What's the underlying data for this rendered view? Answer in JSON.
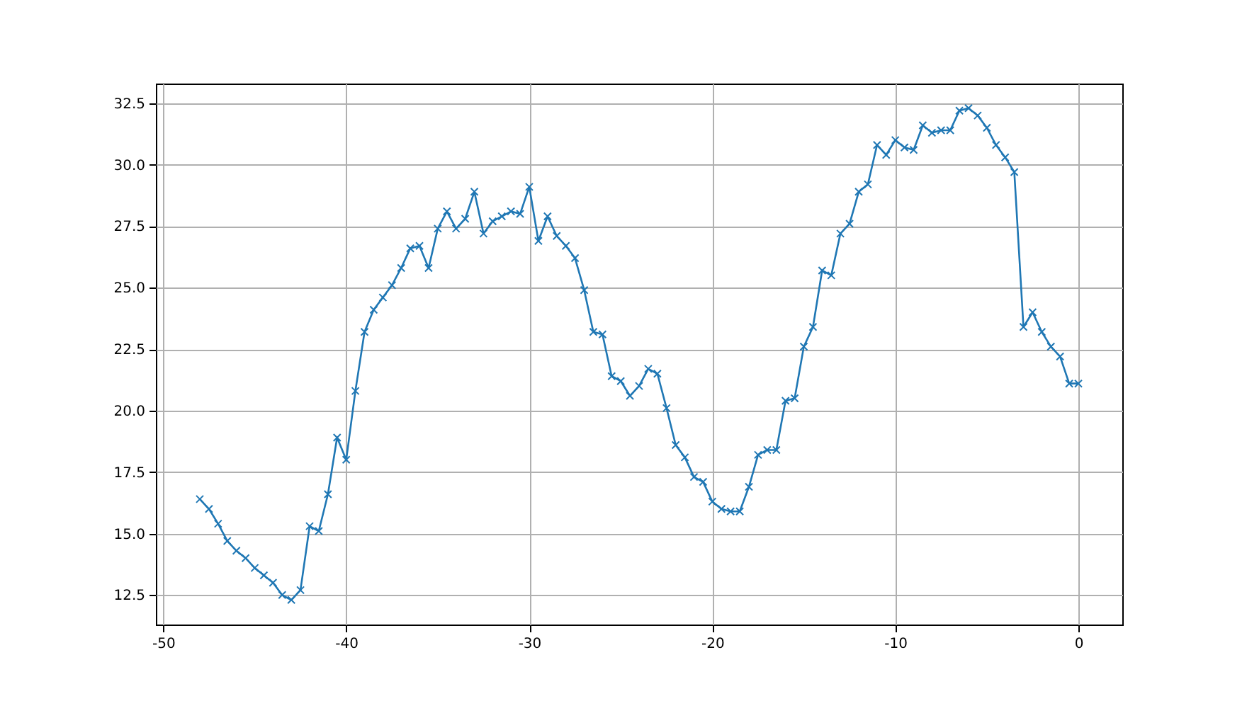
{
  "chart_data": {
    "type": "line",
    "x": [
      -48,
      -47.5,
      -47,
      -46.5,
      -46,
      -45.5,
      -45,
      -44.5,
      -44,
      -43.5,
      -43,
      -42.5,
      -42,
      -41.5,
      -41,
      -40.5,
      -40,
      -39.5,
      -39,
      -38.5,
      -38,
      -37.5,
      -37,
      -36.5,
      -36,
      -35.5,
      -35,
      -34.5,
      -34,
      -33.5,
      -33,
      -32.5,
      -32,
      -31.5,
      -31,
      -30.5,
      -30,
      -29.5,
      -29,
      -28.5,
      -28,
      -27.5,
      -27,
      -26.5,
      -26,
      -25.5,
      -25,
      -24.5,
      -24,
      -23.5,
      -23,
      -22.5,
      -22,
      -21.5,
      -21,
      -20.5,
      -20,
      -19.5,
      -19,
      -18.5,
      -18,
      -17.5,
      -17,
      -16.5,
      -16,
      -15.5,
      -15,
      -14.5,
      -14,
      -13.5,
      -13,
      -12.5,
      -12,
      -11.5,
      -11,
      -10.5,
      -10,
      -9.5,
      -9,
      -8.5,
      -8,
      -7.5,
      -7,
      -6.5,
      -6,
      -5.5,
      -5,
      -4.5,
      -4,
      -3.5,
      -3,
      -2.5,
      -2,
      -1.5,
      -1,
      -0.5,
      0
    ],
    "series": [
      {
        "color": "#1f77b4",
        "values": [
          16.4,
          16.0,
          15.4,
          14.7,
          14.3,
          14.0,
          13.6,
          13.3,
          13.0,
          12.5,
          12.3,
          12.7,
          15.3,
          15.1,
          16.6,
          18.9,
          18.0,
          20.8,
          23.2,
          24.1,
          24.6,
          25.1,
          25.8,
          26.6,
          26.7,
          25.8,
          27.4,
          28.1,
          27.4,
          27.8,
          28.9,
          27.2,
          27.7,
          27.9,
          28.1,
          28.0,
          29.1,
          26.9,
          27.9,
          27.1,
          26.7,
          26.2,
          24.9,
          23.2,
          23.1,
          21.4,
          21.2,
          20.6,
          21.0,
          21.7,
          21.5,
          20.1,
          18.6,
          18.1,
          17.3,
          17.1,
          16.3,
          16.0,
          15.9,
          15.9,
          16.9,
          18.2,
          18.4,
          18.4,
          20.4,
          20.5,
          22.6,
          23.4,
          25.7,
          25.5,
          27.2,
          27.6,
          28.9,
          29.2,
          30.8,
          30.4,
          31.0,
          30.7,
          30.6,
          31.6,
          31.3,
          31.4,
          31.4,
          32.2,
          32.3,
          32.0,
          31.5,
          30.8,
          30.3,
          29.7,
          23.4,
          24.0,
          23.2,
          22.6,
          22.2,
          21.1,
          21.1
        ]
      }
    ],
    "xlim": [
      -50.4,
      2.4
    ],
    "xticks": [
      -50,
      -40,
      -30,
      -20,
      -10,
      0
    ],
    "ylim": [
      11.3,
      33.3
    ],
    "yticks": [
      12.5,
      {
        "value": 15,
        "label": "15.0"
      },
      17.5,
      {
        "value": 20,
        "label": "20.0"
      },
      22.5,
      {
        "value": 25,
        "label": "25.0"
      },
      27.5,
      {
        "value": 30,
        "label": "30.0"
      },
      32.5
    ],
    "grid": true,
    "marker": "cross",
    "line_style": "solid"
  }
}
